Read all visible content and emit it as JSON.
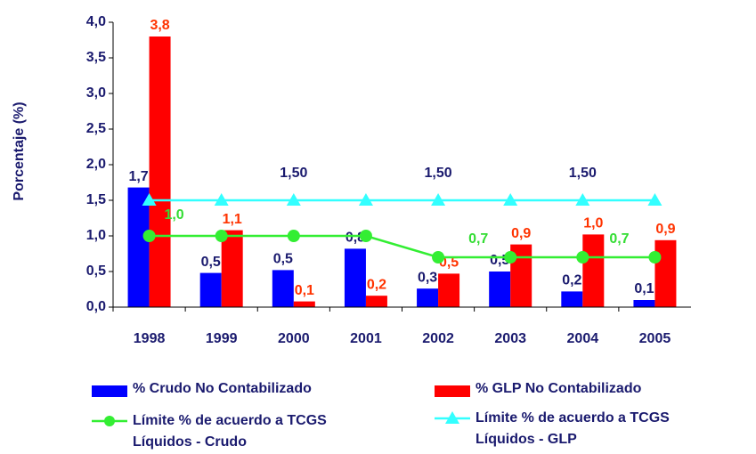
{
  "chart_data": {
    "type": "bar",
    "y_label": "Porcentaje (%)",
    "categories": [
      "1998",
      "1999",
      "2000",
      "2001",
      "2002",
      "2003",
      "2004",
      "2005"
    ],
    "ylim": [
      0,
      4
    ],
    "yticks": [
      {
        "value": 0,
        "label": "0,0"
      },
      {
        "value": 0.5,
        "label": "0,5"
      },
      {
        "value": 1,
        "label": "1,0"
      },
      {
        "value": 1.5,
        "label": "1,5"
      },
      {
        "value": 2,
        "label": "2,0"
      },
      {
        "value": 2.5,
        "label": "2,5"
      },
      {
        "value": 3,
        "label": "3,0"
      },
      {
        "value": 3.5,
        "label": "3,5"
      },
      {
        "value": 4,
        "label": "4,0"
      }
    ],
    "series": [
      {
        "name": "% Crudo No Contabilizado",
        "kind": "bar",
        "color": "#0000ff",
        "label_color": "#1a1a6e",
        "values": [
          1.68,
          0.48,
          0.52,
          0.82,
          0.26,
          0.5,
          0.22,
          0.1
        ],
        "value_labels": [
          "1,7",
          "0,5",
          "0,5",
          "0,8",
          "0,3",
          "0,5",
          "0,2",
          "0,1"
        ]
      },
      {
        "name": "% GLP No Contabilizado",
        "kind": "bar",
        "color": "#ff0000",
        "label_color": "#ff3300",
        "values": [
          3.8,
          1.08,
          0.08,
          0.16,
          0.47,
          0.88,
          1.02,
          0.94
        ],
        "value_labels": [
          "3,8",
          "1,1",
          "0,1",
          "0,2",
          "0,5",
          "0,9",
          "1,0",
          "0,9"
        ]
      },
      {
        "name": "Límite % de acuerdo a TCGS Líquidos - Crudo",
        "kind": "line",
        "marker": "circle",
        "color": "#33ee33",
        "label_color": "#33dd33",
        "values": [
          1.0,
          1.0,
          1.0,
          1.0,
          0.7,
          0.7,
          0.7,
          0.7
        ],
        "value_labels": [
          "1,0",
          null,
          null,
          null,
          null,
          "0,7",
          null,
          "0,7"
        ]
      },
      {
        "name": "Límite % de acuerdo a TCGS Líquidos - GLP",
        "kind": "line",
        "marker": "triangle",
        "color": "#33ffff",
        "label_color": "#1a1a6e",
        "values": [
          1.5,
          1.5,
          1.5,
          1.5,
          1.5,
          1.5,
          1.5,
          1.5
        ],
        "value_labels": [
          null,
          null,
          "1,50",
          null,
          "1,50",
          null,
          "1,50",
          null
        ]
      }
    ]
  }
}
